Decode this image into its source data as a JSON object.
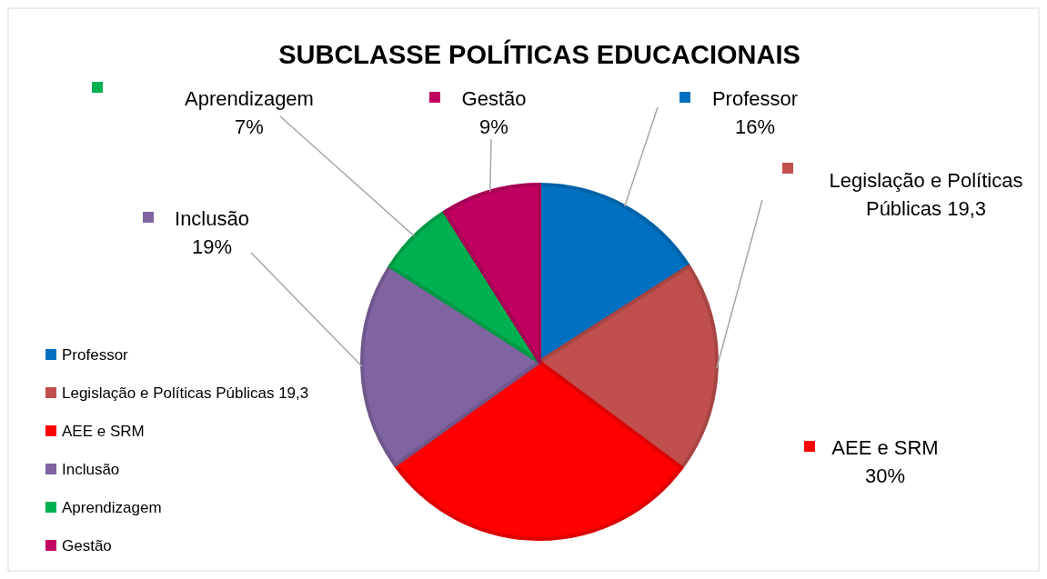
{
  "chart_data": {
    "type": "pie",
    "title": "SUBCLASSE POLÍTICAS EDUCACIONAIS",
    "categories": [
      "Professor",
      "Legislação e Políticas Públicas 19,3",
      "AEE e SRM",
      "Inclusão",
      "Aprendizagem",
      "Gestão"
    ],
    "values": [
      16,
      19.3,
      30,
      19,
      7,
      9
    ],
    "value_labels": [
      "16%",
      null,
      "30%",
      "19%",
      "7%",
      "9%"
    ],
    "colors": [
      "#0070c0",
      "#c0504d",
      "#ff0000",
      "#8064a2",
      "#00b050",
      "#c00060"
    ],
    "legend": "left"
  }
}
